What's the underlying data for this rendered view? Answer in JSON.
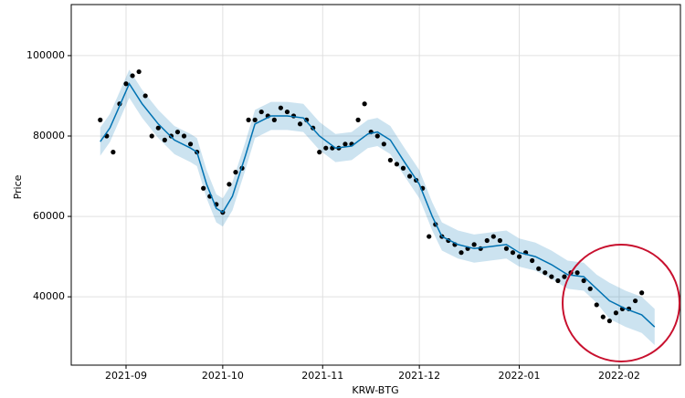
{
  "chart_data": {
    "type": "scatter",
    "x_label": "KRW-BTG",
    "y_label": "Price",
    "xlim": [
      -17,
      172
    ],
    "ylim": [
      23000,
      112700
    ],
    "xticks": [
      {
        "value": 0,
        "label": "2021-09"
      },
      {
        "value": 30,
        "label": "2021-10"
      },
      {
        "value": 61,
        "label": "2021-11"
      },
      {
        "value": 91,
        "label": "2021-12"
      },
      {
        "value": 122,
        "label": "2022-01"
      },
      {
        "value": 153,
        "label": "2022-02"
      }
    ],
    "yticks": [
      40000,
      60000,
      80000,
      100000
    ],
    "grid": true,
    "points": {
      "color": "#000000",
      "x": [
        -8,
        -6,
        -4,
        -2,
        0,
        2,
        4,
        6,
        8,
        10,
        12,
        14,
        16,
        18,
        20,
        22,
        24,
        26,
        28,
        30,
        32,
        34,
        36,
        38,
        40,
        42,
        44,
        46,
        48,
        50,
        52,
        54,
        56,
        58,
        60,
        62,
        64,
        66,
        68,
        70,
        72,
        74,
        76,
        78,
        80,
        82,
        84,
        86,
        88,
        90,
        92,
        94,
        96,
        98,
        100,
        102,
        104,
        106,
        108,
        110,
        112,
        114,
        116,
        118,
        120,
        122,
        124,
        126,
        128,
        130,
        132,
        134,
        136,
        138,
        140,
        142,
        144,
        146,
        148,
        150,
        152,
        154,
        156,
        158,
        160
      ],
      "values": [
        84000,
        80000,
        76000,
        88000,
        93000,
        95000,
        96000,
        90000,
        80000,
        82000,
        79000,
        80000,
        81000,
        80000,
        78000,
        76000,
        67000,
        65000,
        63000,
        61000,
        68000,
        71000,
        72000,
        84000,
        84000,
        86000,
        85000,
        84000,
        87000,
        86000,
        85000,
        83000,
        84000,
        82000,
        76000,
        77000,
        77000,
        77000,
        78000,
        78000,
        84000,
        88000,
        81000,
        80000,
        78000,
        74000,
        73000,
        72000,
        70000,
        69000,
        67000,
        55000,
        58000,
        55000,
        54000,
        53000,
        51000,
        52000,
        53000,
        52000,
        54000,
        55000,
        54000,
        52000,
        51000,
        50000,
        51000,
        49000,
        47000,
        46000,
        45000,
        44000,
        45000,
        46000,
        46000,
        44000,
        42000,
        38000,
        35000,
        34000,
        36000,
        37000,
        37000,
        39000,
        41000
      ]
    },
    "forecast": {
      "color": "#0072b2",
      "band_color": "#0072b2",
      "x": [
        -8,
        -5,
        1,
        5,
        10,
        15,
        20,
        22,
        25,
        28,
        30,
        33,
        37,
        40,
        45,
        50,
        55,
        60,
        65,
        70,
        75,
        78,
        82,
        86,
        91,
        95,
        98,
        103,
        108,
        113,
        118,
        122,
        127,
        132,
        137,
        142,
        146,
        150,
        155,
        160,
        164
      ],
      "values": [
        78600,
        82000,
        93000,
        88000,
        83000,
        79000,
        77000,
        76000,
        68000,
        62000,
        61000,
        65000,
        75000,
        83000,
        85000,
        85000,
        84500,
        80000,
        77000,
        77500,
        80500,
        81000,
        79000,
        74000,
        68000,
        60000,
        55000,
        53000,
        52000,
        52500,
        53000,
        51000,
        50000,
        48000,
        45500,
        45000,
        42000,
        39000,
        37000,
        35500,
        32500
      ],
      "lower": [
        75100,
        78500,
        89500,
        84500,
        79500,
        75500,
        73500,
        72500,
        64500,
        58500,
        57500,
        61500,
        71500,
        79500,
        81500,
        81500,
        81000,
        76500,
        73500,
        74000,
        77000,
        77500,
        75500,
        70500,
        64500,
        56500,
        51500,
        49500,
        48500,
        49000,
        49500,
        47500,
        46500,
        44500,
        42000,
        41500,
        38500,
        34500,
        32500,
        31000,
        28000
      ],
      "upper": [
        82100,
        85500,
        96500,
        91500,
        86500,
        82500,
        80500,
        79500,
        71500,
        65500,
        64500,
        68500,
        78500,
        86500,
        88500,
        88500,
        88000,
        83500,
        80500,
        81000,
        84000,
        84500,
        82500,
        77500,
        71500,
        63500,
        58500,
        56500,
        55500,
        56000,
        56500,
        54500,
        53500,
        51500,
        49000,
        48500,
        45500,
        43500,
        41500,
        40000,
        37000
      ]
    }
  }
}
